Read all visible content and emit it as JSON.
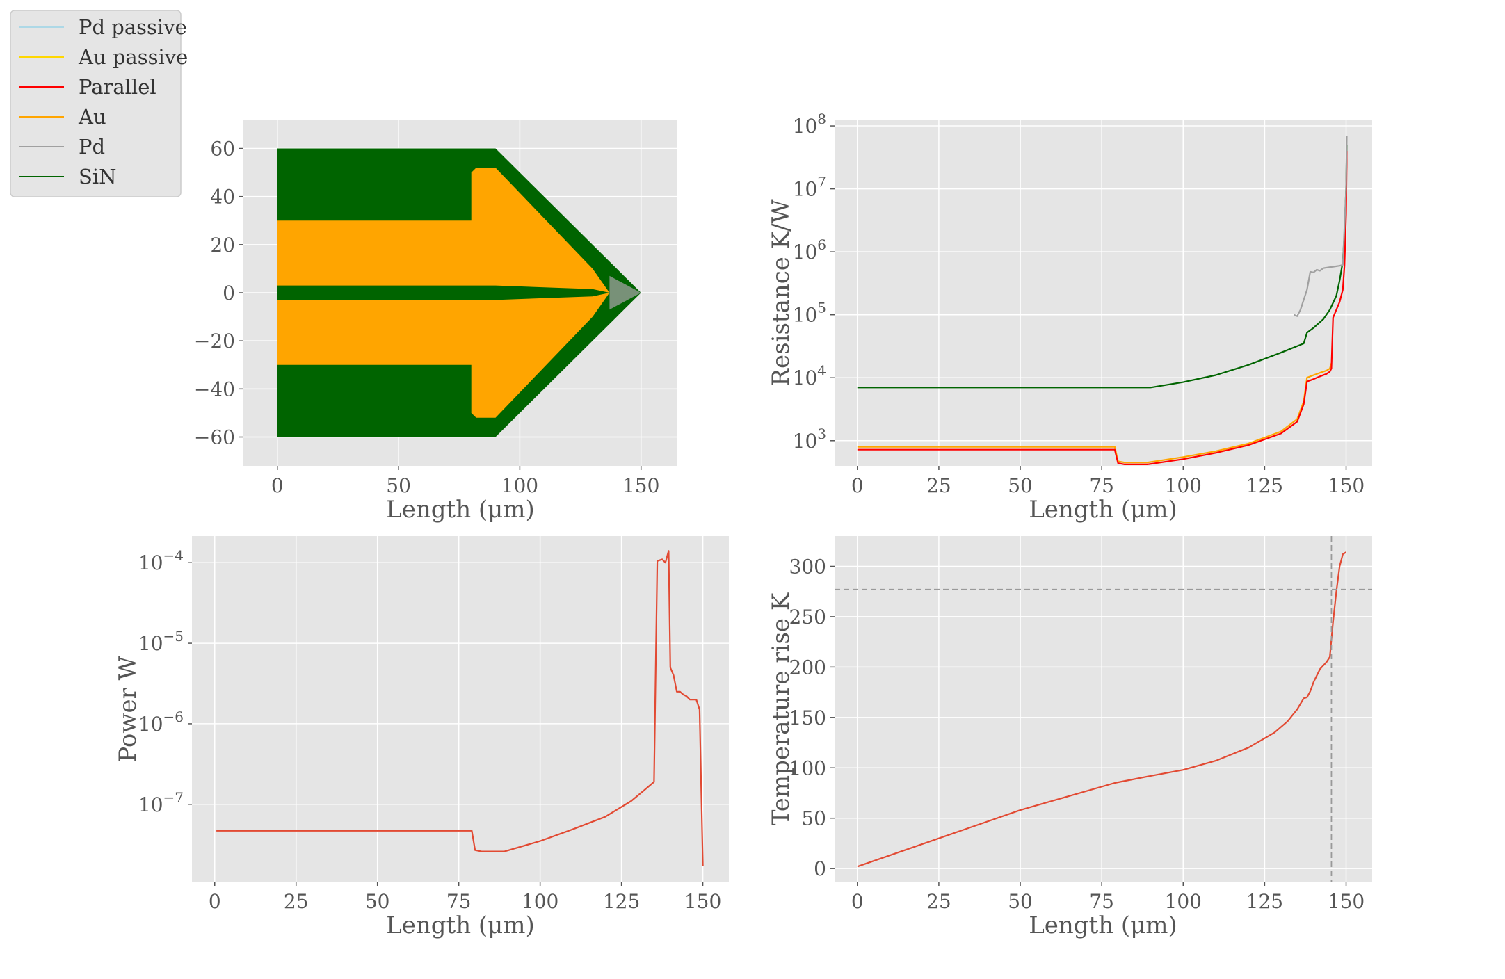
{
  "legend": [
    {
      "label": "Pd passive",
      "color": "#ADD8E6"
    },
    {
      "label": "Au passive",
      "color": "#FFD700"
    },
    {
      "label": "Parallel",
      "color": "#FF0000"
    },
    {
      "label": "Au",
      "color": "#FFA500"
    },
    {
      "label": "Pd",
      "color": "#A0A0A0"
    },
    {
      "label": "SiN",
      "color": "#006400"
    }
  ],
  "chart_data": [
    {
      "type": "area",
      "xlabel": "Length (μm)",
      "ylabel": "",
      "xlim": [
        -14,
        165
      ],
      "ylim": [
        -72,
        72
      ],
      "xticks": [
        "0",
        "50",
        "100",
        "150"
      ],
      "yticks": [
        "60",
        "40",
        "20",
        "0",
        "−20",
        "−40",
        "−60"
      ],
      "grid": true,
      "series": [
        {
          "name": "SiN",
          "color": "#006400",
          "x": [
            0,
            90,
            150,
            90,
            0
          ],
          "y": [
            60,
            60,
            0,
            -60,
            -60
          ]
        },
        {
          "name": "Au",
          "color": "#FFA500",
          "x": [
            0,
            80,
            80,
            82,
            90,
            130,
            137,
            130,
            90,
            82,
            80,
            80,
            0
          ],
          "y": [
            30,
            30,
            50,
            52,
            52,
            10,
            0,
            -10,
            -52,
            -52,
            -50,
            -30,
            -30
          ]
        },
        {
          "name": "SiN",
          "color": "#006400",
          "x": [
            0,
            90,
            130,
            137,
            130,
            90,
            0
          ],
          "y": [
            3,
            3,
            1.5,
            0,
            -1.5,
            -3,
            -3
          ]
        },
        {
          "name": "Pd",
          "color": "#A0A0A0",
          "x": [
            137,
            150,
            137
          ],
          "y": [
            7,
            0,
            -7
          ]
        }
      ]
    },
    {
      "type": "line",
      "xlabel": "Length (μm)",
      "ylabel": "Resistance K/W",
      "yscale": "log",
      "xlim": [
        -7,
        158
      ],
      "ylim_log10": [
        2.6,
        8.1
      ],
      "xticks": [
        "0",
        "25",
        "50",
        "75",
        "100",
        "125",
        "150"
      ],
      "yticks": [
        "10^8",
        "10^7",
        "10^6",
        "10^5",
        "10^4",
        "10^3"
      ],
      "grid": true,
      "series": [
        {
          "name": "SiN",
          "color": "#006400",
          "x": [
            0,
            90,
            100,
            110,
            120,
            130,
            137,
            138,
            140,
            143,
            145,
            147,
            148,
            149,
            149.5,
            150,
            150.2
          ],
          "y": [
            7000,
            7000,
            8500,
            11000,
            16000,
            25000,
            35000,
            52000,
            62000,
            85000,
            120000,
            200000,
            350000,
            700000,
            2000000,
            10000000,
            50000000
          ]
        },
        {
          "name": "Au",
          "color": "#FFA500",
          "x": [
            0,
            79,
            80,
            82,
            89,
            100,
            110,
            120,
            130,
            135,
            137,
            138,
            140,
            142,
            144,
            145,
            145.5
          ],
          "y": [
            800,
            800,
            470,
            450,
            450,
            550,
            680,
            900,
            1400,
            2200,
            4200,
            10000,
            11000,
            12000,
            13000,
            14000,
            17000
          ]
        },
        {
          "name": "Parallel",
          "color": "#FF0000",
          "x": [
            0,
            79,
            80,
            82,
            89,
            100,
            110,
            120,
            130,
            135,
            137,
            138,
            140,
            142,
            144,
            145,
            145.5,
            146,
            147,
            148,
            149,
            149.5,
            150,
            150.2
          ],
          "y": [
            720,
            720,
            440,
            420,
            420,
            510,
            640,
            850,
            1300,
            2000,
            3800,
            8700,
            9500,
            10500,
            11500,
            12500,
            14000,
            90000,
            120000,
            160000,
            250000,
            600000,
            4000000,
            40000000
          ]
        },
        {
          "name": "Pd",
          "color": "#A0A0A0",
          "x": [
            134,
            135,
            136,
            138,
            139,
            140,
            141,
            142,
            143,
            144,
            145,
            146,
            147,
            148,
            149,
            150,
            150.2
          ],
          "y": [
            100000,
            95000,
            120000,
            250000,
            480000,
            470000,
            520000,
            500000,
            550000,
            560000,
            570000,
            580000,
            590000,
            600000,
            620000,
            10000000,
            70000000
          ]
        }
      ]
    },
    {
      "type": "line",
      "xlabel": "Length (μm)",
      "ylabel": "Power W",
      "yscale": "log",
      "xlim": [
        -7,
        158
      ],
      "ylim_log10": [
        -7.96,
        -3.67
      ],
      "xticks": [
        "0",
        "25",
        "50",
        "75",
        "100",
        "125",
        "150"
      ],
      "yticks": [
        "10^-4",
        "10^-5",
        "10^-6",
        "10^-7"
      ],
      "grid": true,
      "series": [
        {
          "name": "",
          "color": "#E24A33",
          "x": [
            0.5,
            79,
            80,
            82,
            89,
            100,
            110,
            120,
            128,
            132,
            135,
            136,
            137.5,
            138.5,
            139.5,
            140,
            141,
            142,
            143,
            144,
            145,
            146,
            147,
            148,
            149,
            150
          ],
          "y": [
            4.7e-08,
            4.7e-08,
            2.7e-08,
            2.6e-08,
            2.6e-08,
            3.5e-08,
            4.9e-08,
            7e-08,
            1.1e-07,
            1.5e-07,
            1.9e-07,
            0.000105,
            0.00011,
            0.0001,
            0.00014,
            5e-06,
            4e-06,
            2.5e-06,
            2.5e-06,
            2.3e-06,
            2.2e-06,
            2e-06,
            2e-06,
            2e-06,
            1.5e-06,
            1.7e-08
          ]
        }
      ]
    },
    {
      "type": "line",
      "xlabel": "Length (μm)",
      "ylabel": "Temperature rise K",
      "xlim": [
        -7,
        158
      ],
      "ylim": [
        -13,
        330
      ],
      "xticks": [
        "0",
        "25",
        "50",
        "75",
        "100",
        "125",
        "150"
      ],
      "yticks": [
        "300",
        "250",
        "200",
        "150",
        "100",
        "50",
        "0"
      ],
      "grid": true,
      "hline": 277,
      "vline": 145.5,
      "series": [
        {
          "name": "",
          "color": "#E24A33",
          "x": [
            0,
            25,
            50,
            79,
            90,
            100,
            110,
            120,
            128,
            132,
            135,
            137,
            138,
            139,
            140,
            142,
            144,
            145,
            146,
            147,
            148,
            149,
            150
          ],
          "y": [
            2,
            30,
            58,
            85,
            92,
            98,
            107,
            120,
            135,
            146,
            158,
            169,
            170,
            176,
            185,
            198,
            205,
            210,
            245,
            275,
            300,
            312,
            314
          ]
        }
      ]
    }
  ]
}
